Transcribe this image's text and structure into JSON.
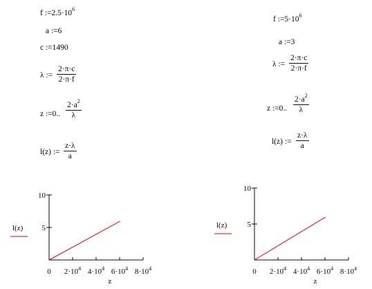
{
  "left": {
    "f_def": "f :=2.5·10",
    "f_exp": "6",
    "a_def": "a :=6",
    "c_def": "c :=1490",
    "lambda_lhs": "λ :=",
    "lambda_num": "2·π·c",
    "lambda_den": "2·π·f",
    "z_lhs": "z :=0..",
    "z_num": "2·a",
    "z_num_exp": "2",
    "z_den": "λ",
    "l_lhs": "l(z) :=",
    "l_num": "z·λ",
    "l_den": "a"
  },
  "right": {
    "f_def": "f :=5·10",
    "f_exp": "6",
    "a_def": "a :=3",
    "lambda_lhs": "λ :=",
    "lambda_num": "2·π·c",
    "lambda_den": "2·π·f",
    "z_lhs": "z :=0..",
    "z_num": "2·a",
    "z_num_exp": "2",
    "z_den": "λ",
    "l_lhs": "l(z) :=",
    "l_num": "z·λ",
    "l_den": "a"
  },
  "chart_data": [
    {
      "type": "line",
      "ylabel": "l(z)",
      "xlabel": "z",
      "xlim": [
        0,
        80000
      ],
      "ylim": [
        0,
        10
      ],
      "x_ticks": [
        "0",
        "2·10",
        "4·10",
        "6·10",
        "8·10"
      ],
      "x_tick_exp": "4",
      "y_ticks": [
        "10",
        "5"
      ],
      "series": [
        {
          "color": "#cc0000",
          "x": [
            0,
            60403
          ],
          "y": [
            0,
            5.96
          ]
        }
      ]
    },
    {
      "type": "line",
      "ylabel": "l(z)",
      "xlabel": "z",
      "xlim": [
        0,
        80000
      ],
      "ylim": [
        0,
        10
      ],
      "x_ticks": [
        "0",
        "2·10",
        "4·10",
        "6·10",
        "8·10"
      ],
      "x_tick_exp": "4",
      "y_ticks": [
        "10",
        "5"
      ],
      "series": [
        {
          "color": "#cc0000",
          "x": [
            0,
            60403
          ],
          "y": [
            0,
            5.96
          ]
        }
      ]
    }
  ]
}
